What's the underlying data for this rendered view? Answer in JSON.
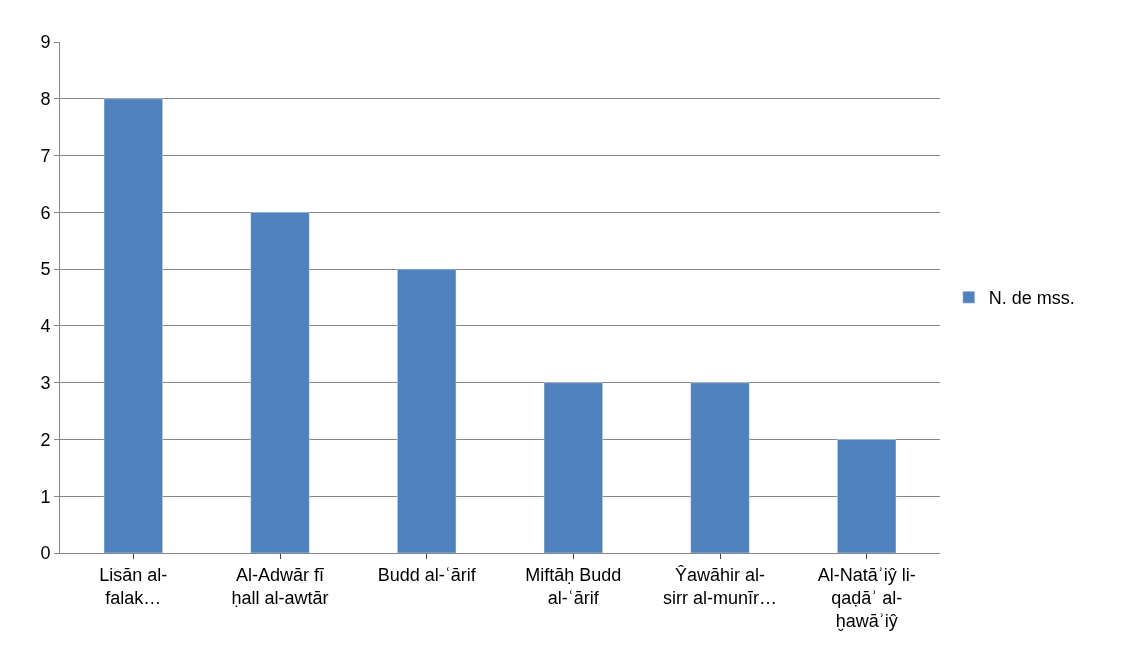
{
  "chart_data": {
    "type": "bar",
    "categories": [
      "Lisān al-falak…",
      "Al-Adwār fī ḥall al-awtār",
      "Budd al-ʿārif",
      "Miftāḥ Budd al-ʿārif",
      "Ŷawāhir al-sirr al-munīr…",
      "Al-Natāʾiŷ li-qaḍāʾ al-ḫawāʾiŷ"
    ],
    "series": [
      {
        "name": "N. de mss.",
        "color": "#4f81bd",
        "values": [
          8,
          6,
          5,
          3,
          3,
          2
        ]
      }
    ],
    "ylim": [
      0,
      9
    ],
    "yticks": [
      0,
      1,
      2,
      3,
      4,
      5,
      6,
      7,
      8,
      9
    ],
    "grid": "y",
    "legend": "right"
  }
}
